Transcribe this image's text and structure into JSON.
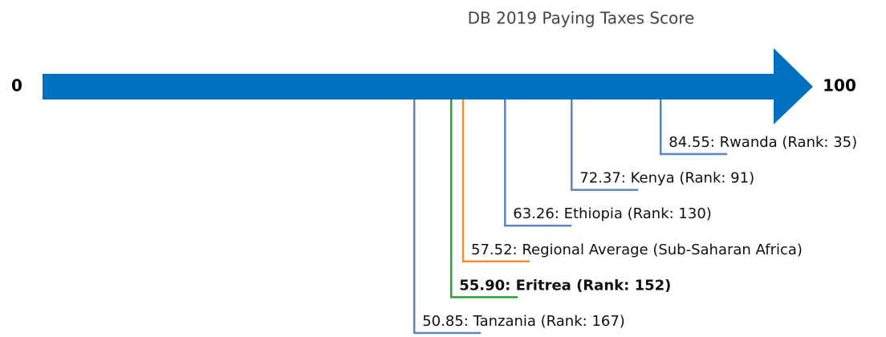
{
  "chart_data": {
    "type": "number-line",
    "title": "DB 2019 Paying Taxes Score",
    "xlim": [
      0,
      100
    ],
    "xticks": [
      0,
      100
    ],
    "axis_color": "#0070c0",
    "values": [
      84.55,
      72.37,
      63.26,
      57.52,
      55.9,
      50.85
    ],
    "value_labels": [
      "84.55: Rwanda (Rank: 35)",
      "72.37: Kenya (Rank: 91)",
      "63.26: Ethiopia (Rank: 130)",
      "57.52: Regional Average (Sub-Saharan Africa)",
      "55.90: Eritrea (Rank: 152)",
      "50.85: Tanzania (Rank: 167)"
    ],
    "colors": [
      "#5b86c0",
      "#5b86c0",
      "#5b86c0",
      "#f28e2b",
      "#2ca02c",
      "#5b86c0"
    ],
    "bold": [
      false,
      false,
      false,
      false,
      true,
      false
    ]
  }
}
